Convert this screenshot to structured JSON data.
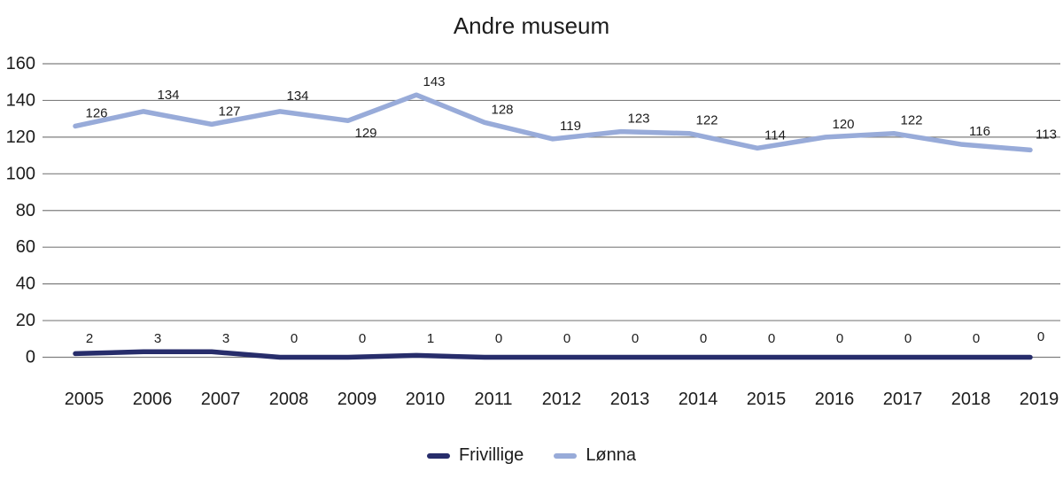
{
  "chart_data": {
    "type": "line",
    "title": "Andre museum",
    "categories": [
      "2005",
      "2006",
      "2007",
      "2008",
      "2009",
      "2010",
      "2011",
      "2012",
      "2013",
      "2014",
      "2015",
      "2016",
      "2017",
      "2018",
      "2019"
    ],
    "series": [
      {
        "name": "Frivillige",
        "color": "#272d6b",
        "values": [
          2,
          3,
          3,
          0,
          0,
          1,
          0,
          0,
          0,
          0,
          0,
          0,
          0,
          0,
          0
        ]
      },
      {
        "name": "Lønna",
        "color": "#98abd9",
        "values": [
          126,
          134,
          127,
          134,
          129,
          143,
          128,
          119,
          123,
          122,
          114,
          120,
          122,
          116,
          113
        ]
      }
    ],
    "xlabel": "",
    "ylabel": "",
    "ylim": [
      0,
      160
    ],
    "yticks": [
      0,
      20,
      40,
      60,
      80,
      100,
      120,
      140,
      160
    ],
    "grid": true,
    "grid_color": "#7f7f7f",
    "text_color": "#1c1c1c",
    "background": "#ffffff",
    "legend_position": "bottom",
    "data_labels_shown": true
  }
}
